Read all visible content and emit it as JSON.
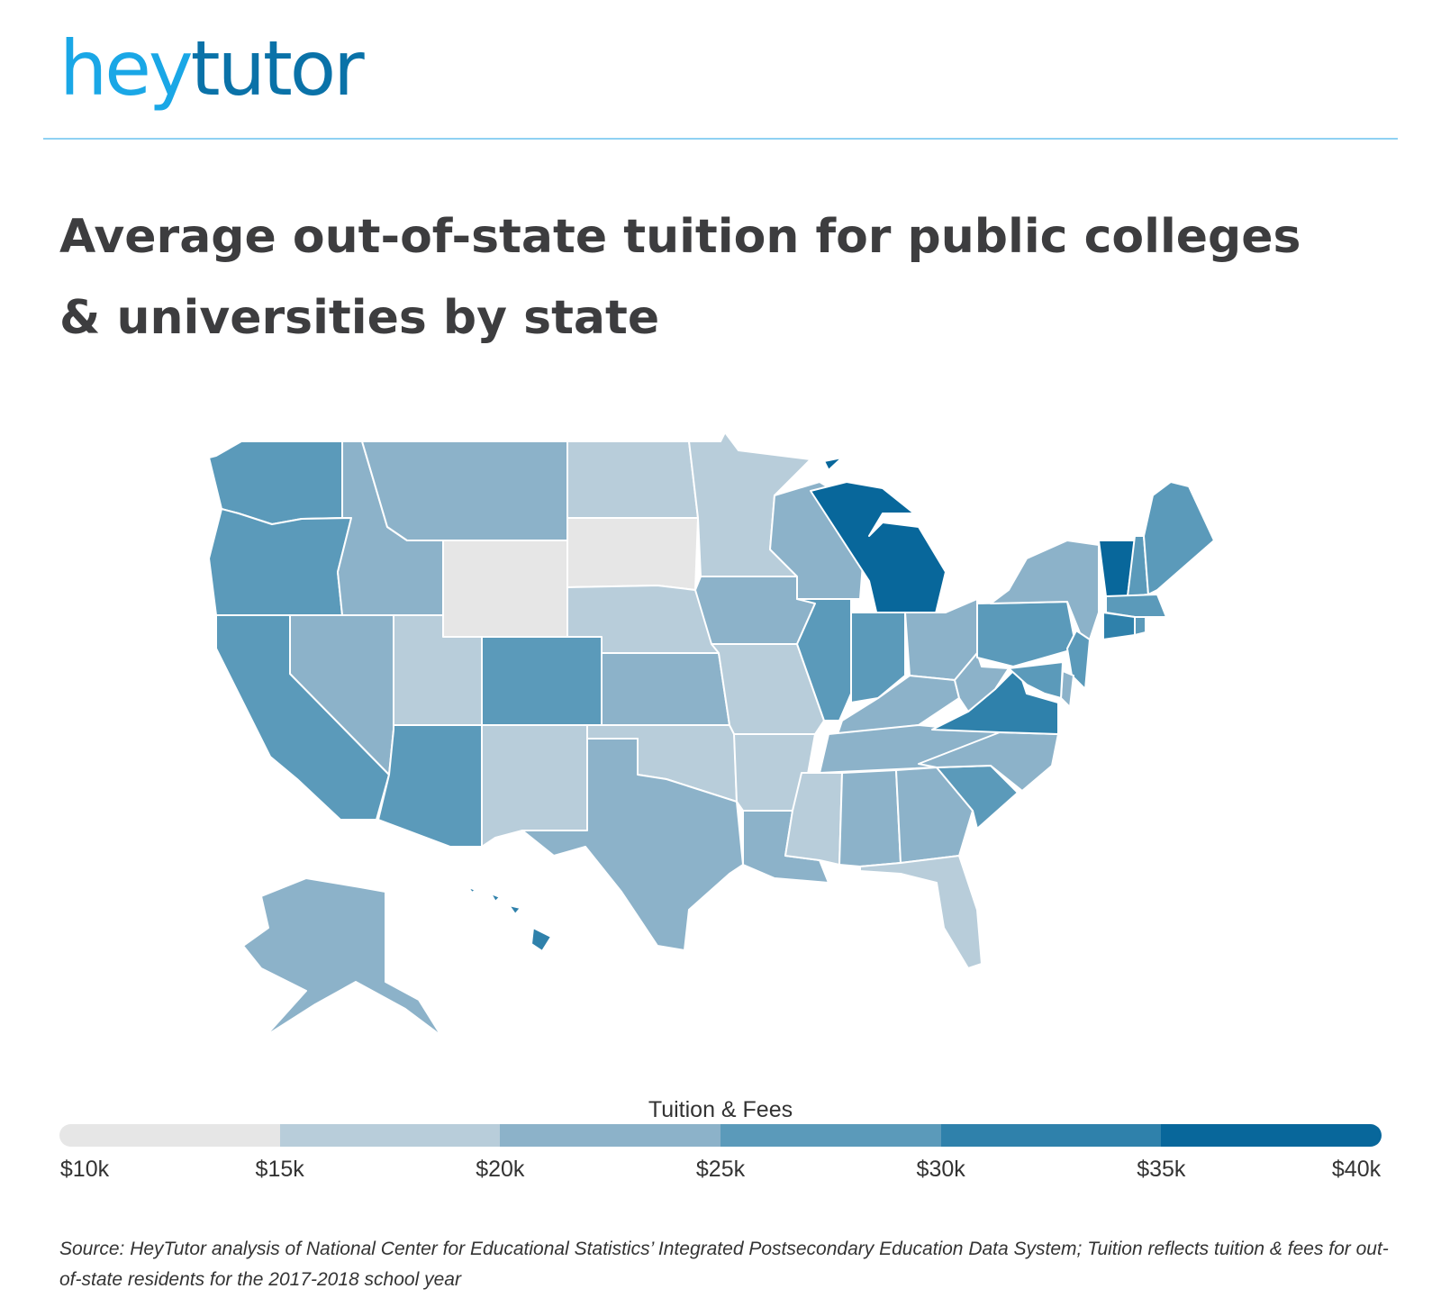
{
  "brand": {
    "logo_part1": "hey",
    "logo_part2": "tutor",
    "color_light": "#1aa7e6",
    "color_dark": "#0a72a8"
  },
  "header": {
    "title": "Average out-of-state tuition for public colleges & universities by state"
  },
  "chart_data": {
    "type": "choropleth",
    "title": "Average out-of-state tuition for public colleges & universities by state",
    "legend_title": "Tuition & Fees",
    "bins": [
      {
        "min": 10000,
        "max": 15000,
        "color": "#e6e6e6"
      },
      {
        "min": 15000,
        "max": 20000,
        "color": "#b8cdda"
      },
      {
        "min": 20000,
        "max": 25000,
        "color": "#8cb2c9"
      },
      {
        "min": 25000,
        "max": 30000,
        "color": "#5b9aba"
      },
      {
        "min": 30000,
        "max": 35000,
        "color": "#2f81ab"
      },
      {
        "min": 35000,
        "max": 40000,
        "color": "#08679b"
      }
    ],
    "legend_ticks": [
      "$10k",
      "$15k",
      "$20k",
      "$25k",
      "$30k",
      "$35k",
      "$40k"
    ],
    "state_bins": {
      "WA": 3,
      "OR": 3,
      "CA": 3,
      "NV": 2,
      "ID": 2,
      "MT": 2,
      "WY": 0,
      "UT": 1,
      "AZ": 3,
      "CO": 3,
      "NM": 1,
      "ND": 1,
      "SD": 0,
      "NE": 1,
      "KS": 2,
      "OK": 1,
      "TX": 2,
      "MN": 1,
      "IA": 2,
      "MO": 1,
      "AR": 1,
      "LA": 2,
      "WI": 2,
      "IL": 3,
      "MI": 5,
      "IN": 3,
      "OH": 2,
      "KY": 2,
      "TN": 2,
      "MS": 1,
      "AL": 2,
      "GA": 2,
      "FL": 1,
      "SC": 3,
      "NC": 2,
      "VA": 4,
      "WV": 2,
      "PA": 3,
      "NY": 2,
      "VT": 5,
      "NH": 3,
      "ME": 3,
      "MA": 3,
      "RI": 3,
      "CT": 4,
      "NJ": 3,
      "DE": 2,
      "MD": 3,
      "AK": 2,
      "HI": 4
    }
  },
  "source": "Source: HeyTutor analysis of National Center for Educational Statistics’ Integrated Postsecondary Education Data System; Tuition reflects tuition & fees for out-of-state residents for the 2017-2018 school year"
}
